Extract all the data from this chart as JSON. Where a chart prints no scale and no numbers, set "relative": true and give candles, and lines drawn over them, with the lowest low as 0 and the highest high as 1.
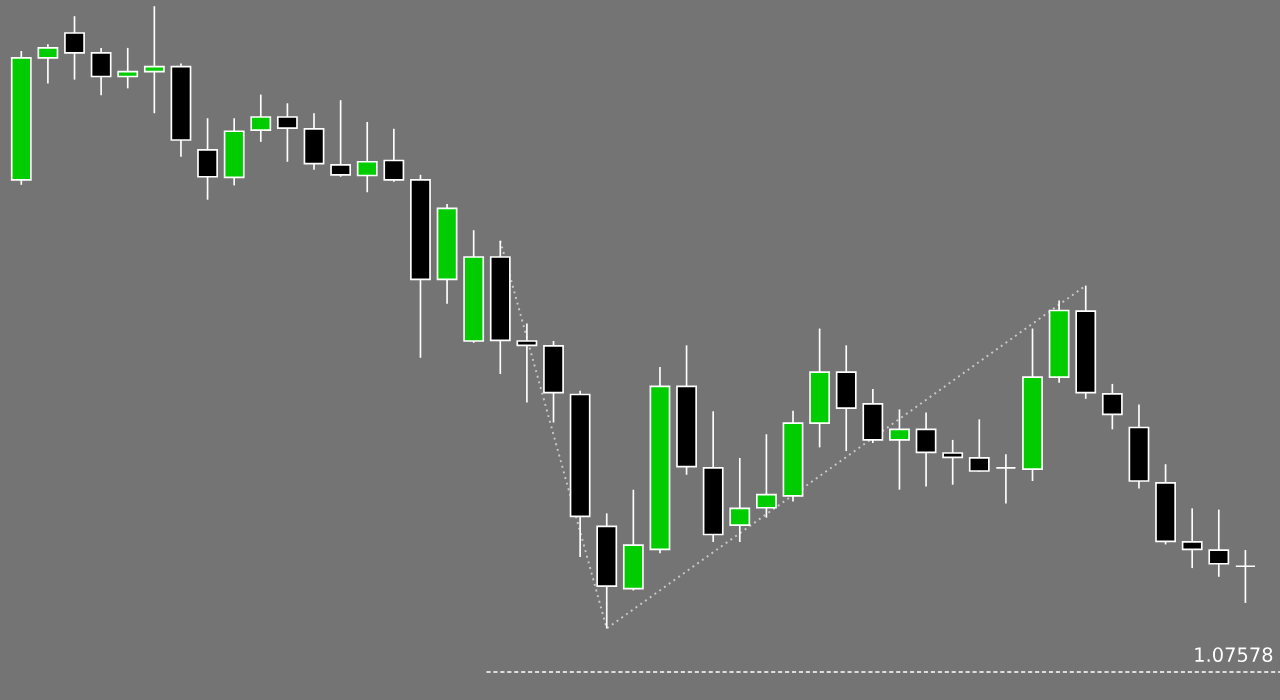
{
  "chart_data": {
    "type": "candlestick",
    "relative": true,
    "categories": [
      null,
      null,
      null,
      null,
      null,
      null,
      null,
      null,
      null,
      null,
      null,
      null,
      null,
      null,
      null,
      null,
      null,
      null,
      null,
      null,
      null,
      null,
      null,
      null,
      null,
      null,
      null,
      null,
      null,
      null,
      null,
      null,
      null,
      null,
      null,
      null,
      null,
      null,
      null,
      null,
      null,
      null,
      null,
      null,
      null,
      null,
      null
    ],
    "ohlc": [
      [
        0.721,
        0.928,
        0.713,
        0.917
      ],
      [
        0.917,
        0.939,
        0.876,
        0.933
      ],
      [
        0.957,
        0.984,
        0.882,
        0.925
      ],
      [
        0.925,
        0.933,
        0.857,
        0.887
      ],
      [
        0.887,
        0.933,
        0.868,
        0.895
      ],
      [
        0.895,
        1.0,
        0.828,
        0.903
      ],
      [
        0.903,
        0.908,
        0.758,
        0.785
      ],
      [
        0.769,
        0.82,
        0.689,
        0.726
      ],
      [
        0.725,
        0.82,
        0.712,
        0.799
      ],
      [
        0.801,
        0.858,
        0.782,
        0.822
      ],
      [
        0.822,
        0.844,
        0.75,
        0.804
      ],
      [
        0.803,
        0.828,
        0.737,
        0.747
      ],
      [
        0.745,
        0.849,
        0.726,
        0.729
      ],
      [
        0.728,
        0.814,
        0.701,
        0.75
      ],
      [
        0.752,
        0.803,
        0.718,
        0.721
      ],
      [
        0.721,
        0.729,
        0.435,
        0.561
      ],
      [
        0.561,
        0.682,
        0.522,
        0.675
      ],
      [
        0.462,
        0.64,
        0.459,
        0.597
      ],
      [
        0.597,
        0.623,
        0.409,
        0.463
      ],
      [
        0.462,
        0.49,
        0.363,
        0.455
      ],
      [
        0.454,
        0.462,
        0.331,
        0.379
      ],
      [
        0.376,
        0.382,
        0.115,
        0.18
      ],
      [
        0.164,
        0.185,
        0.0,
        0.068
      ],
      [
        0.064,
        0.223,
        0.061,
        0.134
      ],
      [
        0.127,
        0.42,
        0.121,
        0.389
      ],
      [
        0.389,
        0.455,
        0.247,
        0.26
      ],
      [
        0.258,
        0.349,
        0.139,
        0.151
      ],
      [
        0.166,
        0.274,
        0.139,
        0.193
      ],
      [
        0.194,
        0.312,
        0.178,
        0.215
      ],
      [
        0.213,
        0.35,
        0.204,
        0.33
      ],
      [
        0.33,
        0.482,
        0.291,
        0.412
      ],
      [
        0.412,
        0.455,
        0.285,
        0.354
      ],
      [
        0.361,
        0.385,
        0.298,
        0.303
      ],
      [
        0.303,
        0.352,
        0.223,
        0.32
      ],
      [
        0.32,
        0.347,
        0.228,
        0.283
      ],
      [
        0.282,
        0.303,
        0.231,
        0.275
      ],
      [
        0.274,
        0.336,
        0.252,
        0.253
      ],
      [
        0.258,
        0.28,
        0.201,
        0.258
      ],
      [
        0.256,
        0.482,
        0.237,
        0.404
      ],
      [
        0.404,
        0.527,
        0.395,
        0.511
      ],
      [
        0.51,
        0.551,
        0.369,
        0.379
      ],
      [
        0.377,
        0.393,
        0.32,
        0.344
      ],
      [
        0.323,
        0.36,
        0.225,
        0.237
      ],
      [
        0.234,
        0.264,
        0.135,
        0.14
      ],
      [
        0.139,
        0.193,
        0.097,
        0.127
      ],
      [
        0.126,
        0.191,
        0.083,
        0.104
      ],
      [
        0.1,
        0.126,
        0.041,
        0.1
      ]
    ],
    "colors": [
      "#00cc00",
      "#00cc00",
      "#000000",
      "#000000",
      "#00cc00",
      "#00cc00",
      "#000000",
      "#000000",
      "#00cc00",
      "#00cc00",
      "#000000",
      "#000000",
      "#000000",
      "#00cc00",
      "#000000",
      "#000000",
      "#00cc00",
      "#00cc00",
      "#000000",
      "#000000",
      "#000000",
      "#000000",
      "#000000",
      "#00cc00",
      "#00cc00",
      "#000000",
      "#000000",
      "#00cc00",
      "#00cc00",
      "#00cc00",
      "#00cc00",
      "#000000",
      "#000000",
      "#00cc00",
      "#000000",
      "#000000",
      "#000000",
      "#ffffff",
      "#00cc00",
      "#00cc00",
      "#000000",
      "#000000",
      "#000000",
      "#000000",
      "#000000",
      "#000000",
      "#ffffff"
    ],
    "series": [
      {
        "type": "line",
        "color": "#c8c8c8",
        "line_style": "dotted",
        "values": [
          null,
          null,
          null,
          null,
          null,
          null,
          null,
          null,
          null,
          null,
          null,
          null,
          null,
          null,
          null,
          null,
          null,
          null,
          0.623,
          null,
          null,
          null,
          0.0,
          null,
          null,
          null,
          null,
          null,
          null,
          null,
          null,
          null,
          null,
          null,
          null,
          null,
          null,
          null,
          null,
          null,
          0.551,
          null,
          null,
          null,
          null,
          null,
          null
        ]
      }
    ],
    "annotations": [
      "1.07578"
    ],
    "grid": false,
    "legend": false
  }
}
